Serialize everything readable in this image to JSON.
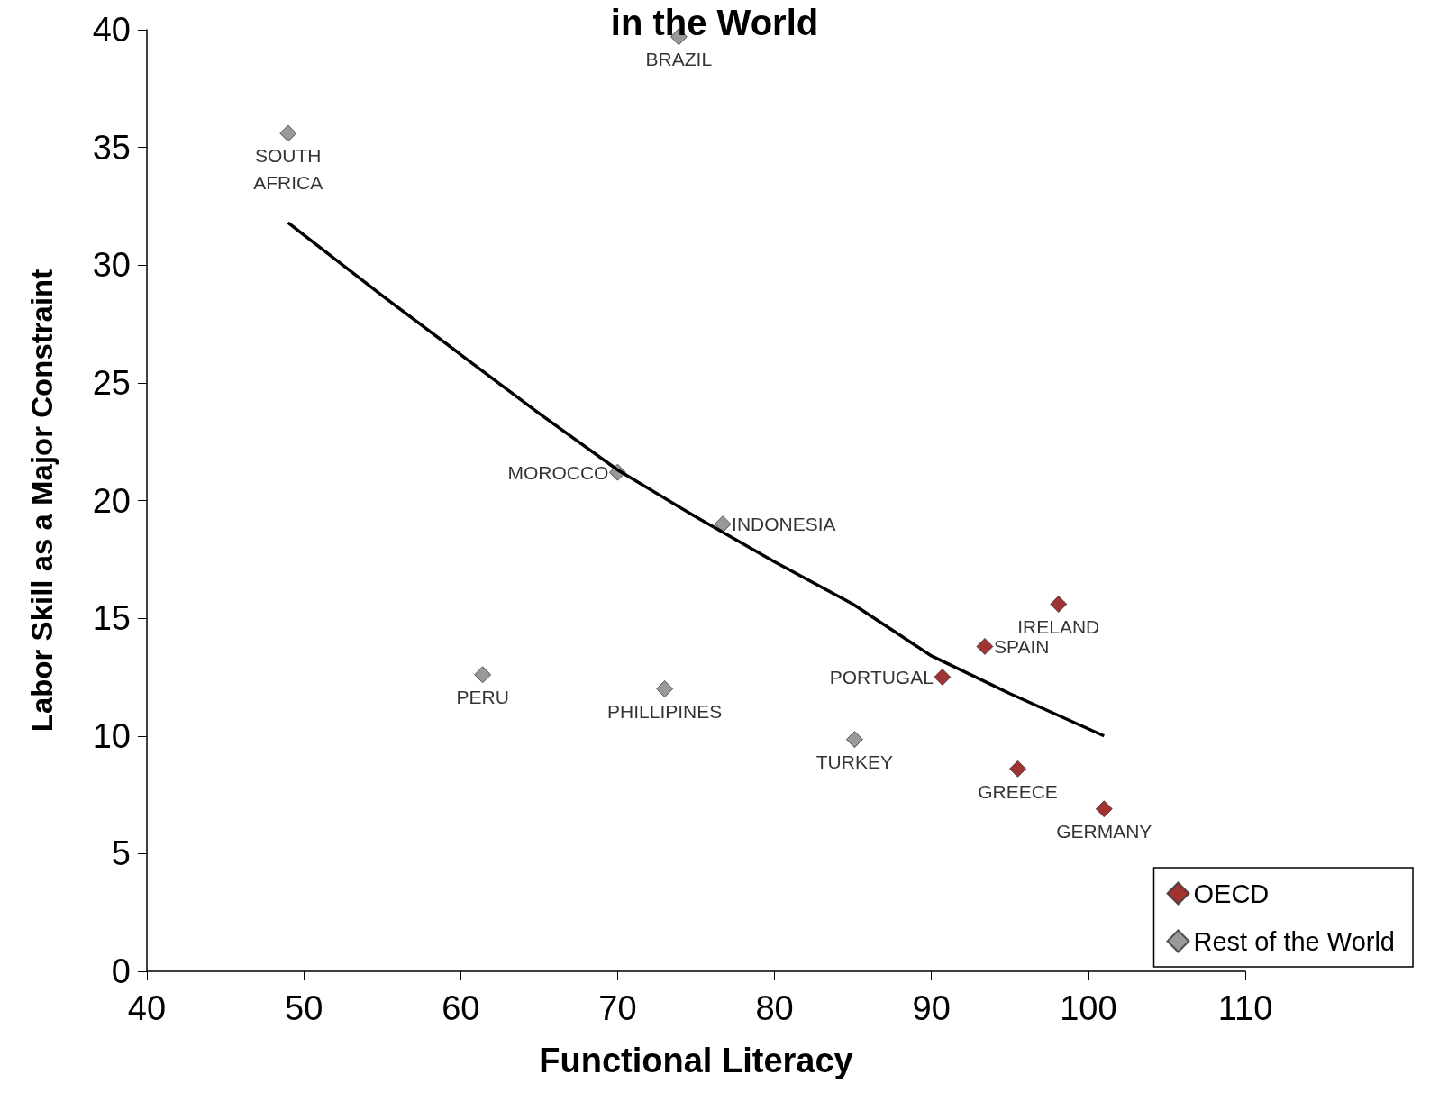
{
  "chart_data": {
    "type": "scatter",
    "title": "in the World",
    "xlabel": "Functional Literacy",
    "ylabel": "Labor Skill as a Major Constraint",
    "xlim": [
      40,
      110
    ],
    "xticks": [
      40,
      50,
      60,
      70,
      80,
      90,
      100,
      110
    ],
    "ylim": [
      0,
      40
    ],
    "yticks": [
      0,
      5,
      10,
      15,
      20,
      25,
      30,
      35,
      40
    ],
    "grid": false,
    "legend": "bottom right",
    "marker": "diamond",
    "series": [
      {
        "name": "OECD",
        "color": "#8b0000",
        "x": [
          98.1,
          93.4,
          90.7,
          95.5,
          101.0
        ],
        "values": [
          15.6,
          13.8,
          12.5,
          8.6,
          6.9
        ]
      },
      {
        "name": "Rest of the World",
        "color": "#808080",
        "x": [
          73.9,
          49.0,
          70.0,
          76.7,
          61.4,
          73.0,
          85.1
        ],
        "values": [
          39.7,
          35.6,
          21.2,
          19.0,
          12.6,
          12.0,
          9.85
        ]
      },
      {
        "type": "line",
        "color": "#000000",
        "line_style": "solid",
        "marker": "none",
        "x": [
          49,
          55,
          60,
          65,
          70,
          75,
          80,
          85,
          90,
          95,
          101
        ],
        "values": [
          31.8,
          28.7,
          26.2,
          23.7,
          21.3,
          19.3,
          17.4,
          15.6,
          13.4,
          11.8,
          10.0
        ]
      }
    ],
    "annotations": [
      {
        "text": "IRELAND",
        "x": 98.1,
        "y": 15.6
      },
      {
        "text": "SPAIN",
        "x": 93.4,
        "y": 13.8
      },
      {
        "text": "PORTUGAL",
        "x": 90.7,
        "y": 12.5
      },
      {
        "text": "GREECE",
        "x": 95.5,
        "y": 8.6
      },
      {
        "text": "GERMANY",
        "x": 101.0,
        "y": 6.9
      },
      {
        "text": "BRAZIL",
        "x": 73.9,
        "y": 39.7
      },
      {
        "text": "SOUTH\nAFRICA",
        "x": 49.0,
        "y": 35.6
      },
      {
        "text": "MOROCCO",
        "x": 70.0,
        "y": 21.2
      },
      {
        "text": "INDONESIA",
        "x": 76.7,
        "y": 19.0
      },
      {
        "text": "PERU",
        "x": 61.4,
        "y": 12.6
      },
      {
        "text": "PHILLIPINES",
        "x": 73.0,
        "y": 12.0
      },
      {
        "text": "TURKEY",
        "x": 85.1,
        "y": 9.85
      }
    ]
  }
}
